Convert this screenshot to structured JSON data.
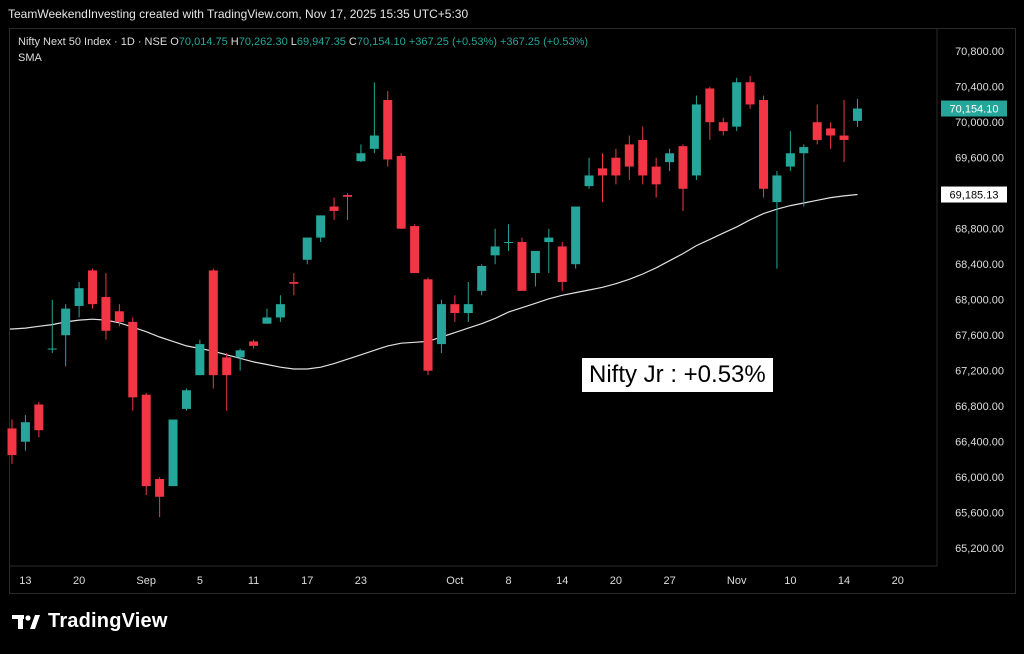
{
  "header": {
    "text": "TeamWeekendInvesting created with TradingView.com, Nov 17, 2025 15:35 UTC+5:30"
  },
  "legend": {
    "symbol": "Nifty Next 50 Index · 1D · NSE",
    "o_label": "O",
    "o": "70,014.75",
    "h_label": "H",
    "h": "70,262.30",
    "l_label": "L",
    "l": "69,947.35",
    "c_label": "C",
    "c": "70,154.10",
    "change": "+367.25 (+0.53%)",
    "change2": "+367.25 (+0.53%)",
    "indicator": "SMA"
  },
  "annotation": "Nifty Jr : +0.53%",
  "footer": {
    "brand": "TradingView"
  },
  "colors": {
    "up": "#26a69a",
    "down": "#f23645",
    "sma": "#e0e0e0",
    "background": "#000000",
    "text": "#dddddd"
  },
  "chart_data": {
    "type": "candlestick",
    "ylim": [
      65000,
      71050
    ],
    "yticks": [
      65200,
      65600,
      66000,
      66400,
      66800,
      67200,
      67600,
      68000,
      68400,
      68800,
      69200,
      69600,
      70000,
      70400,
      70800
    ],
    "ytick_labels": [
      "65,200.00",
      "65,600.00",
      "66,000.00",
      "66,400.00",
      "66,800.00",
      "67,200.00",
      "67,600.00",
      "68,000.00",
      "68,400.00",
      "68,800.00",
      "",
      "69,600.00",
      "70,000.00",
      "70,400.00",
      "70,800.00"
    ],
    "last_price_label": "70,154.10",
    "last_price": 70154.1,
    "sma_label": "69,185.13",
    "sma_value": 69185.13,
    "xticks": [
      {
        "label": "13",
        "index": 1
      },
      {
        "label": "20",
        "index": 5
      },
      {
        "label": "Sep",
        "index": 10
      },
      {
        "label": "5",
        "index": 14
      },
      {
        "label": "11",
        "index": 18
      },
      {
        "label": "17",
        "index": 22
      },
      {
        "label": "23",
        "index": 26
      },
      {
        "label": "Oct",
        "index": 33
      },
      {
        "label": "8",
        "index": 37
      },
      {
        "label": "14",
        "index": 41
      },
      {
        "label": "20",
        "index": 45
      },
      {
        "label": "27",
        "index": 49
      },
      {
        "label": "Nov",
        "index": 54
      },
      {
        "label": "10",
        "index": 58
      },
      {
        "label": "14",
        "index": 62
      },
      {
        "label": "20",
        "index": 66
      }
    ],
    "candles": [
      {
        "o": 66550,
        "h": 66650,
        "l": 66150,
        "c": 66250
      },
      {
        "o": 66400,
        "h": 66700,
        "l": 66300,
        "c": 66620
      },
      {
        "o": 66820,
        "h": 66850,
        "l": 66450,
        "c": 66530
      },
      {
        "o": 67450,
        "h": 68000,
        "l": 67400,
        "c": 67450
      },
      {
        "o": 67600,
        "h": 67950,
        "l": 67250,
        "c": 67900
      },
      {
        "o": 67930,
        "h": 68200,
        "l": 67800,
        "c": 68130
      },
      {
        "o": 68330,
        "h": 68350,
        "l": 67900,
        "c": 67950
      },
      {
        "o": 68030,
        "h": 68300,
        "l": 67550,
        "c": 67650
      },
      {
        "o": 67870,
        "h": 67950,
        "l": 67700,
        "c": 67750
      },
      {
        "o": 67750,
        "h": 67800,
        "l": 66750,
        "c": 66900
      },
      {
        "o": 66930,
        "h": 66950,
        "l": 65800,
        "c": 65900
      },
      {
        "o": 65980,
        "h": 66000,
        "l": 65550,
        "c": 65780
      },
      {
        "o": 65900,
        "h": 66650,
        "l": 65900,
        "c": 66650
      },
      {
        "o": 66770,
        "h": 67000,
        "l": 66750,
        "c": 66980
      },
      {
        "o": 67150,
        "h": 67550,
        "l": 67150,
        "c": 67500
      },
      {
        "o": 68330,
        "h": 68350,
        "l": 67000,
        "c": 67150
      },
      {
        "o": 67350,
        "h": 67400,
        "l": 66750,
        "c": 67150
      },
      {
        "o": 67350,
        "h": 67450,
        "l": 67200,
        "c": 67430
      },
      {
        "o": 67530,
        "h": 67550,
        "l": 67450,
        "c": 67480
      },
      {
        "o": 67730,
        "h": 67900,
        "l": 67730,
        "c": 67800
      },
      {
        "o": 67800,
        "h": 68050,
        "l": 67750,
        "c": 67950
      },
      {
        "o": 68200,
        "h": 68300,
        "l": 68050,
        "c": 68180
      },
      {
        "o": 68450,
        "h": 68700,
        "l": 68400,
        "c": 68700
      },
      {
        "o": 68700,
        "h": 68950,
        "l": 68650,
        "c": 68950
      },
      {
        "o": 69050,
        "h": 69150,
        "l": 68900,
        "c": 69000
      },
      {
        "o": 69180,
        "h": 69200,
        "l": 68900,
        "c": 69160
      },
      {
        "o": 69560,
        "h": 69750,
        "l": 69550,
        "c": 69650
      },
      {
        "o": 69700,
        "h": 70450,
        "l": 69650,
        "c": 69850
      },
      {
        "o": 70250,
        "h": 70350,
        "l": 69500,
        "c": 69580
      },
      {
        "o": 69620,
        "h": 69650,
        "l": 68800,
        "c": 68800
      },
      {
        "o": 68830,
        "h": 68850,
        "l": 68300,
        "c": 68300
      },
      {
        "o": 68230,
        "h": 68250,
        "l": 67150,
        "c": 67200
      },
      {
        "o": 67500,
        "h": 68000,
        "l": 67400,
        "c": 67950
      },
      {
        "o": 67950,
        "h": 68050,
        "l": 67750,
        "c": 67850
      },
      {
        "o": 67850,
        "h": 68200,
        "l": 67750,
        "c": 67950
      },
      {
        "o": 68100,
        "h": 68400,
        "l": 68050,
        "c": 68380
      },
      {
        "o": 68500,
        "h": 68800,
        "l": 68400,
        "c": 68600
      },
      {
        "o": 68650,
        "h": 68850,
        "l": 68550,
        "c": 68650
      },
      {
        "o": 68650,
        "h": 68700,
        "l": 68100,
        "c": 68100
      },
      {
        "o": 68300,
        "h": 68550,
        "l": 68150,
        "c": 68550
      },
      {
        "o": 68650,
        "h": 68800,
        "l": 68300,
        "c": 68700
      },
      {
        "o": 68600,
        "h": 68650,
        "l": 68100,
        "c": 68200
      },
      {
        "o": 68400,
        "h": 69050,
        "l": 68350,
        "c": 69050
      },
      {
        "o": 69280,
        "h": 69600,
        "l": 69250,
        "c": 69400
      },
      {
        "o": 69480,
        "h": 69650,
        "l": 69100,
        "c": 69400
      },
      {
        "o": 69600,
        "h": 69700,
        "l": 69300,
        "c": 69400
      },
      {
        "o": 69750,
        "h": 69850,
        "l": 69350,
        "c": 69500
      },
      {
        "o": 69800,
        "h": 69950,
        "l": 69300,
        "c": 69400
      },
      {
        "o": 69500,
        "h": 69600,
        "l": 69150,
        "c": 69300
      },
      {
        "o": 69550,
        "h": 69700,
        "l": 69450,
        "c": 69650
      },
      {
        "o": 69730,
        "h": 69750,
        "l": 69000,
        "c": 69250
      },
      {
        "o": 69400,
        "h": 70300,
        "l": 69350,
        "c": 70200
      },
      {
        "o": 70380,
        "h": 70400,
        "l": 69800,
        "c": 70000
      },
      {
        "o": 70000,
        "h": 70050,
        "l": 69850,
        "c": 69900
      },
      {
        "o": 69950,
        "h": 70500,
        "l": 69900,
        "c": 70450
      },
      {
        "o": 70450,
        "h": 70520,
        "l": 70150,
        "c": 70200
      },
      {
        "o": 70250,
        "h": 70300,
        "l": 69150,
        "c": 69250
      },
      {
        "o": 69100,
        "h": 69450,
        "l": 68350,
        "c": 69400
      },
      {
        "o": 69500,
        "h": 69900,
        "l": 69450,
        "c": 69650
      },
      {
        "o": 69650,
        "h": 69750,
        "l": 69050,
        "c": 69720
      },
      {
        "o": 70000,
        "h": 70200,
        "l": 69750,
        "c": 69800
      },
      {
        "o": 69930,
        "h": 70000,
        "l": 69700,
        "c": 69850
      },
      {
        "o": 69850,
        "h": 70250,
        "l": 69550,
        "c": 69800
      },
      {
        "o": 70014.75,
        "h": 70262.3,
        "l": 69947.35,
        "c": 70154.1
      }
    ],
    "sma": [
      67670,
      67680,
      67700,
      67720,
      67750,
      67770,
      67780,
      67770,
      67740,
      67690,
      67640,
      67580,
      67530,
      67480,
      67450,
      67420,
      67380,
      67340,
      67300,
      67270,
      67240,
      67220,
      67220,
      67240,
      67280,
      67330,
      67380,
      67430,
      67480,
      67510,
      67520,
      67530,
      67580,
      67630,
      67680,
      67730,
      67790,
      67860,
      67910,
      67960,
      68010,
      68050,
      68080,
      68110,
      68140,
      68180,
      68230,
      68290,
      68360,
      68440,
      68520,
      68610,
      68680,
      68750,
      68820,
      68900,
      68970,
      69020,
      69060,
      69090,
      69120,
      69150,
      69170,
      69185
    ]
  }
}
